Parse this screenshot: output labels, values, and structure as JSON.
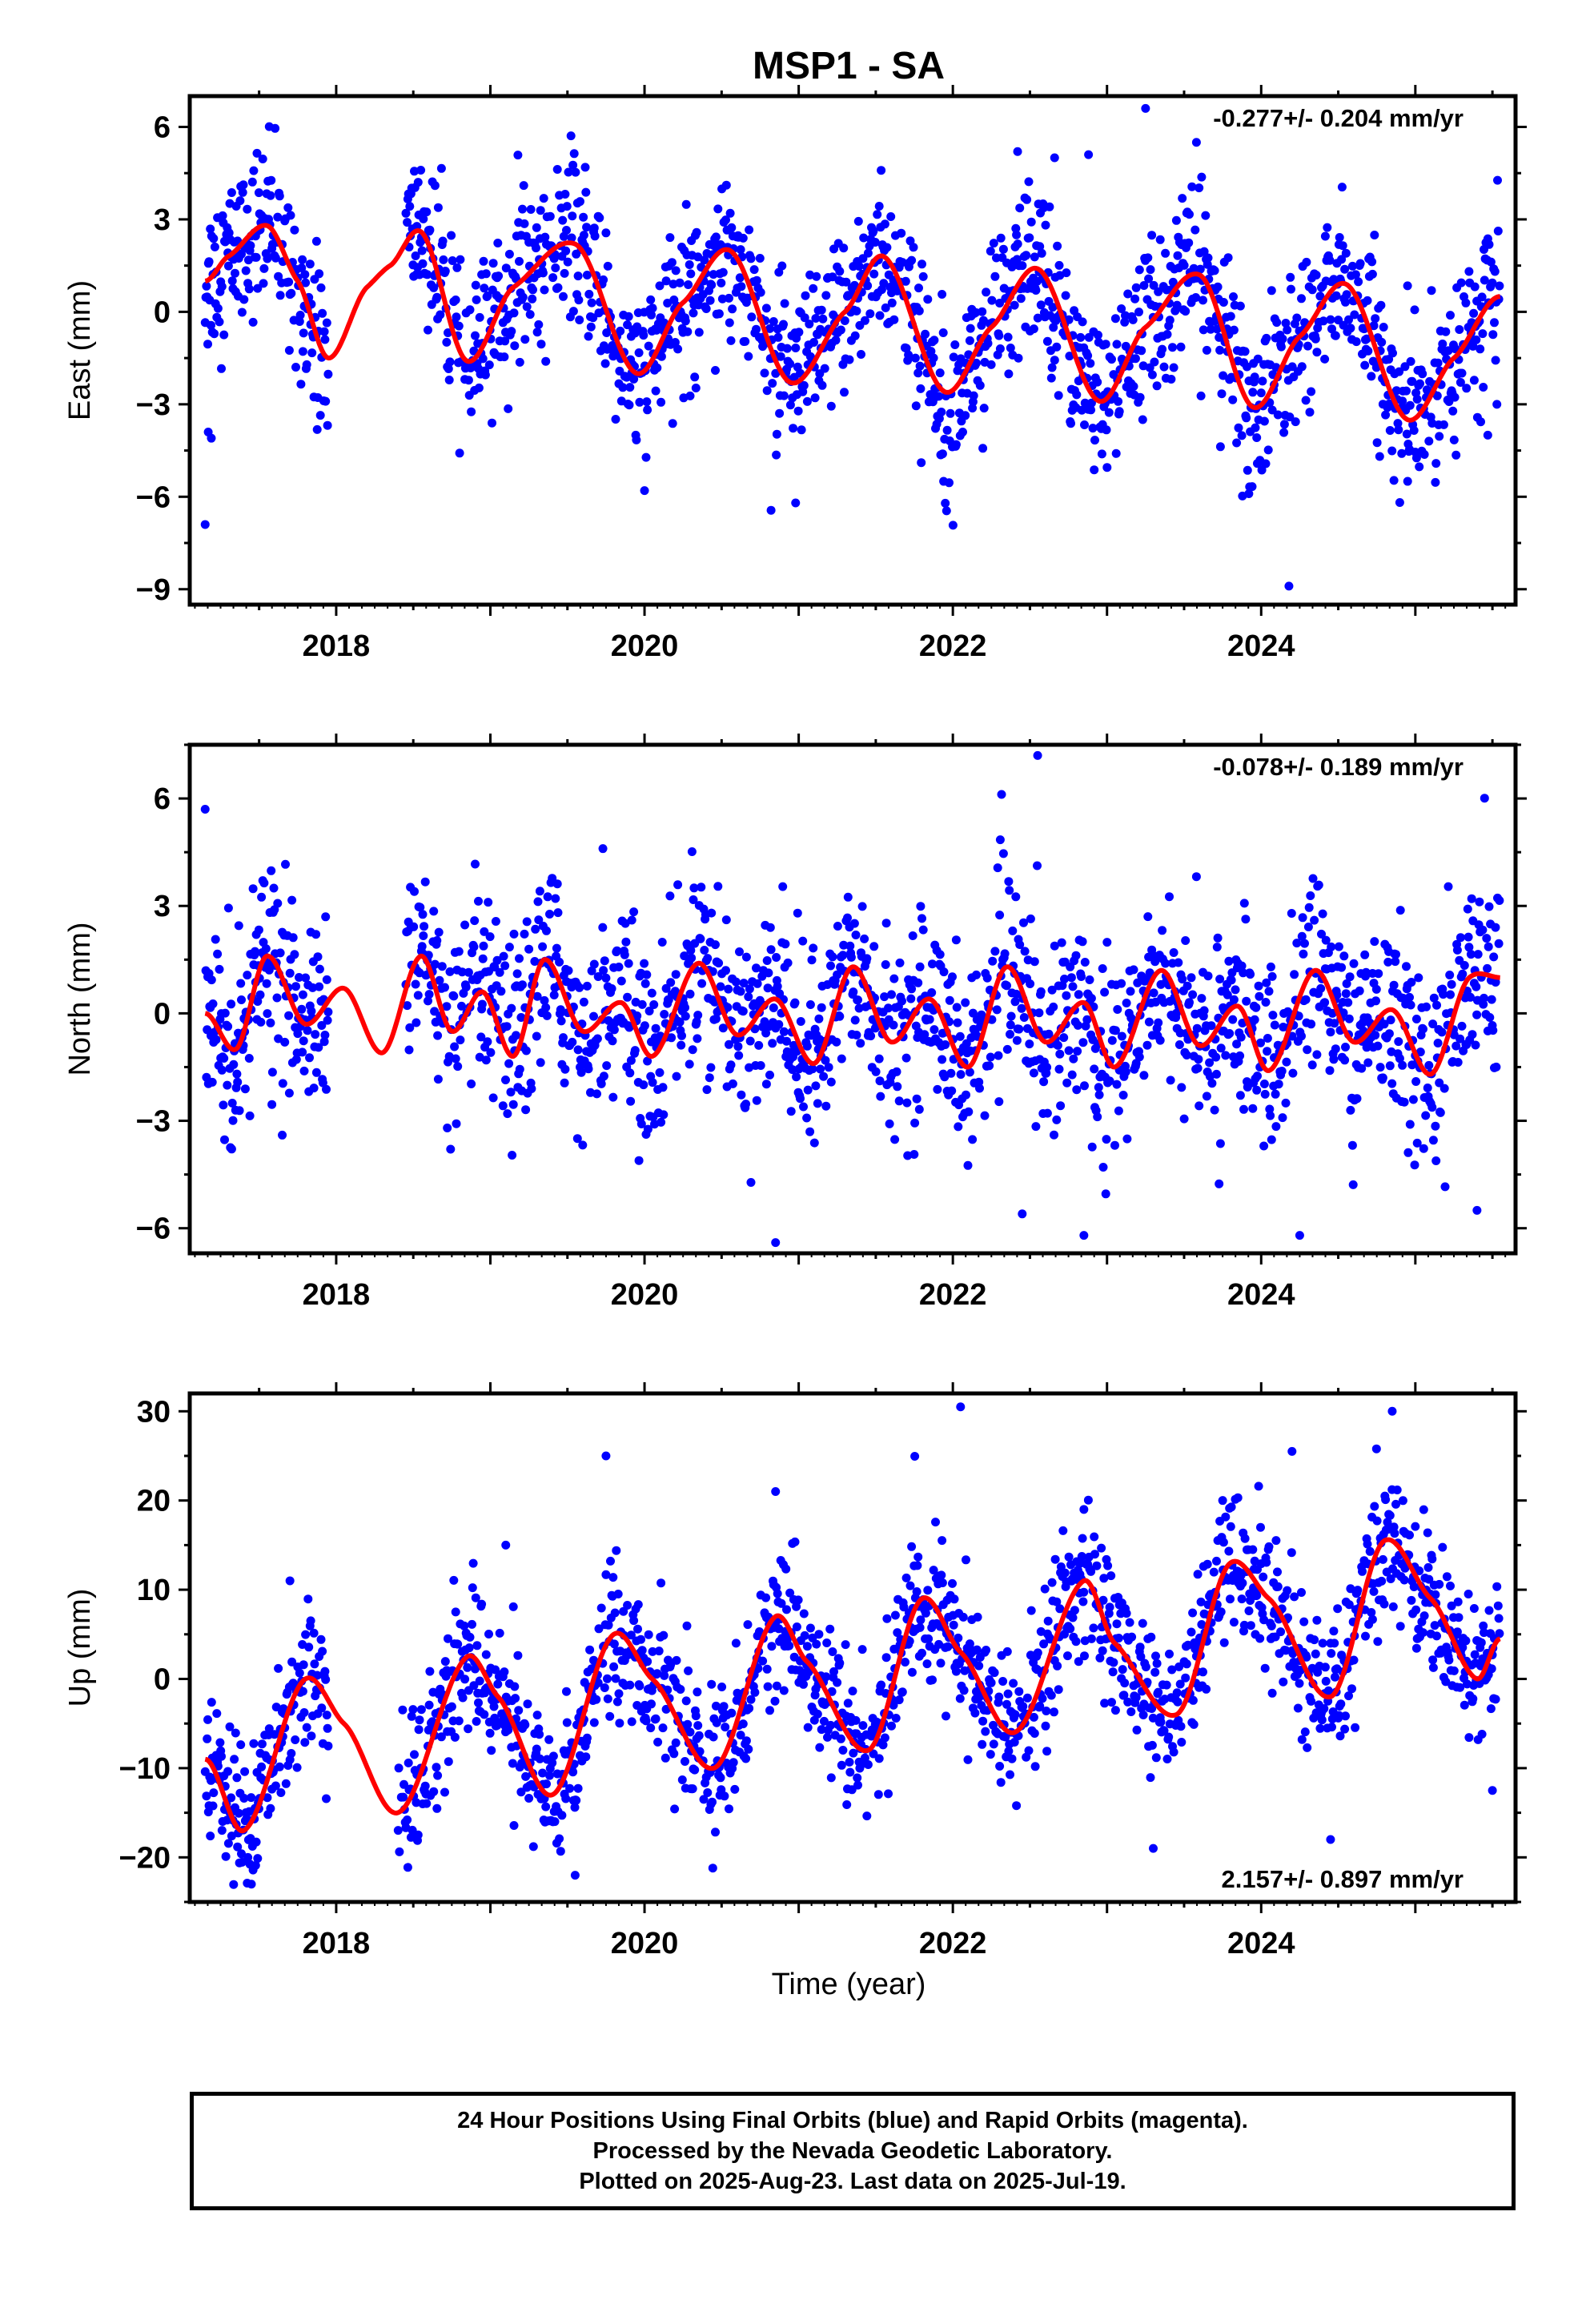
{
  "figure": {
    "title": "MSP1 - SA",
    "xlabel": "Time (year)",
    "colors": {
      "data": "#0000ff",
      "fit": "#ff0000",
      "frame": "#000000"
    }
  },
  "caption": {
    "line1": "24 Hour Positions Using Final Orbits (blue) and Rapid Orbits (magenta).",
    "line2": "Processed by the Nevada Geodetic Laboratory.",
    "line3": "Plotted on 2025-Aug-23. Last data on 2025-Jul-19."
  },
  "chart_data": [
    {
      "type": "scatter",
      "panel": "east",
      "ylabel": "East (mm)",
      "rate_text": "-0.277+/- 0.204 mm/yr",
      "rate_position": "top-right",
      "xlim": [
        2017.05,
        2025.65
      ],
      "ylim": [
        -9.5,
        7.0
      ],
      "xticks": [
        2018,
        2020,
        2022,
        2024
      ],
      "xtick_labels": [
        "2018",
        "2020",
        "2022",
        "2024"
      ],
      "yticks": [
        -9,
        -6,
        -3,
        0,
        3,
        6
      ],
      "ytick_labels": [
        "−9",
        "−6",
        "−3",
        "0",
        "3",
        "6"
      ],
      "grid": false,
      "data_start": 2017.15,
      "data_end": 2025.55,
      "gaps": [
        [
          2017.95,
          2018.45
        ]
      ],
      "fit": {
        "x": [
          2017.15,
          2017.3,
          2017.55,
          2017.75,
          2017.95,
          2018.2,
          2018.35,
          2018.55,
          2018.85,
          2019.15,
          2019.55,
          2019.95,
          2020.25,
          2020.55,
          2020.95,
          2021.3,
          2021.55,
          2021.95,
          2022.25,
          2022.55,
          2022.95,
          2023.25,
          2023.6,
          2023.95,
          2024.25,
          2024.55,
          2024.95,
          2025.25,
          2025.55
        ],
        "y": [
          1.0,
          1.8,
          2.8,
          1.0,
          -1.5,
          0.8,
          1.5,
          2.6,
          -1.6,
          0.8,
          2.2,
          -2.0,
          0.3,
          2.0,
          -2.3,
          0.0,
          1.8,
          -2.6,
          -0.5,
          1.4,
          -2.9,
          -0.5,
          1.2,
          -3.1,
          -0.8,
          0.9,
          -3.5,
          -1.5,
          0.5
        ]
      },
      "scatter_spread": 1.3,
      "outliers": [
        {
          "x": 2017.15,
          "y": -6.9
        },
        {
          "x": 2017.17,
          "y": -3.9
        },
        {
          "x": 2017.19,
          "y": -4.1
        },
        {
          "x": 2020.0,
          "y": -5.8
        },
        {
          "x": 2020.98,
          "y": -6.2
        },
        {
          "x": 2021.94,
          "y": -5.5
        },
        {
          "x": 2022.42,
          "y": 5.2
        },
        {
          "x": 2022.66,
          "y": 5.0
        },
        {
          "x": 2022.88,
          "y": 5.1
        },
        {
          "x": 2023.25,
          "y": 6.6
        },
        {
          "x": 2023.58,
          "y": 5.5
        },
        {
          "x": 2023.92,
          "y": -5.9
        },
        {
          "x": 2024.18,
          "y": -8.9
        },
        {
          "x": 2024.95,
          "y": -5.5
        },
        {
          "x": 2025.47,
          "y": -4.0
        }
      ]
    },
    {
      "type": "scatter",
      "panel": "north",
      "ylabel": "North (mm)",
      "rate_text": "-0.078+/- 0.189 mm/yr",
      "rate_position": "top-right",
      "xlim": [
        2017.05,
        2025.65
      ],
      "ylim": [
        -6.7,
        7.5
      ],
      "xticks": [
        2018,
        2020,
        2022,
        2024
      ],
      "xtick_labels": [
        "2018",
        "2020",
        "2022",
        "2024"
      ],
      "yticks": [
        -6,
        -3,
        0,
        3,
        6
      ],
      "ytick_labels": [
        "−6",
        "−3",
        "0",
        "3",
        "6"
      ],
      "grid": false,
      "data_start": 2017.15,
      "data_end": 2025.55,
      "gaps": [
        [
          2017.95,
          2018.45
        ]
      ],
      "fit": {
        "x": [
          2017.15,
          2017.35,
          2017.55,
          2017.8,
          2018.05,
          2018.3,
          2018.55,
          2018.75,
          2018.95,
          2019.15,
          2019.35,
          2019.6,
          2019.85,
          2020.05,
          2020.35,
          2020.6,
          2020.85,
          2021.1,
          2021.35,
          2021.6,
          2021.85,
          2022.1,
          2022.35,
          2022.6,
          2022.85,
          2023.05,
          2023.35,
          2023.6,
          2023.85,
          2024.05,
          2024.35,
          2024.6,
          2024.85,
          2025.1,
          2025.35,
          2025.55
        ],
        "y": [
          0.0,
          -1.0,
          1.6,
          -0.3,
          0.7,
          -1.1,
          1.6,
          -0.5,
          0.6,
          -1.2,
          1.5,
          -0.5,
          0.3,
          -1.2,
          1.4,
          -0.6,
          0.4,
          -1.4,
          1.3,
          -0.8,
          0.4,
          -1.5,
          1.3,
          -0.8,
          0.3,
          -1.5,
          1.2,
          -0.9,
          0.2,
          -1.6,
          1.2,
          -0.8,
          0.1,
          -1.7,
          1.0,
          1.0
        ]
      },
      "scatter_spread": 1.3,
      "outliers": [
        {
          "x": 2017.15,
          "y": 5.7
        },
        {
          "x": 2017.65,
          "y": -3.4
        },
        {
          "x": 2019.73,
          "y": 4.6
        },
        {
          "x": 2020.85,
          "y": -6.4
        },
        {
          "x": 2022.45,
          "y": -5.6
        },
        {
          "x": 2022.55,
          "y": 7.2
        },
        {
          "x": 2022.85,
          "y": -6.2
        },
        {
          "x": 2024.25,
          "y": -6.2
        },
        {
          "x": 2025.4,
          "y": -5.5
        },
        {
          "x": 2025.52,
          "y": 2.4
        }
      ]
    },
    {
      "type": "scatter",
      "panel": "up",
      "ylabel": "Up (mm)",
      "rate_text": "2.157+/- 0.897 mm/yr",
      "rate_position": "bottom-right",
      "xlim": [
        2017.05,
        2025.65
      ],
      "ylim": [
        -25,
        32
      ],
      "xticks": [
        2018,
        2020,
        2022,
        2024
      ],
      "xtick_labels": [
        "2018",
        "2020",
        "2022",
        "2024"
      ],
      "yticks": [
        -20,
        -10,
        0,
        10,
        20,
        30
      ],
      "ytick_labels": [
        "−20",
        "−10",
        "0",
        "10",
        "20",
        "30"
      ],
      "grid": false,
      "data_start": 2017.15,
      "data_end": 2025.55,
      "gaps": [
        [
          2017.95,
          2018.4
        ]
      ],
      "fit": {
        "x": [
          2017.15,
          2017.4,
          2017.8,
          2018.05,
          2018.4,
          2018.85,
          2019.05,
          2019.4,
          2019.8,
          2020.05,
          2020.45,
          2020.85,
          2021.05,
          2021.45,
          2021.8,
          2022.05,
          2022.4,
          2022.85,
          2023.05,
          2023.45,
          2023.8,
          2024.05,
          2024.45,
          2024.8,
          2025.1,
          2025.4,
          2025.55
        ],
        "y": [
          -9,
          -17,
          0,
          -5,
          -15,
          2.5,
          -2,
          -13,
          5,
          0,
          -10,
          7,
          2,
          -8,
          9,
          3,
          -6,
          11,
          4,
          -4,
          13,
          9,
          -2,
          15.5,
          9,
          0,
          4.5
        ]
      },
      "scatter_spread": 4.0,
      "outliers": [
        {
          "x": 2017.45,
          "y": -23
        },
        {
          "x": 2017.7,
          "y": 11
        },
        {
          "x": 2019.1,
          "y": 15
        },
        {
          "x": 2019.55,
          "y": -22
        },
        {
          "x": 2019.75,
          "y": 25
        },
        {
          "x": 2020.85,
          "y": 21
        },
        {
          "x": 2022.05,
          "y": 30.5
        },
        {
          "x": 2022.85,
          "y": 19
        },
        {
          "x": 2023.3,
          "y": -19
        },
        {
          "x": 2023.75,
          "y": 20
        },
        {
          "x": 2024.2,
          "y": 25.5
        },
        {
          "x": 2024.45,
          "y": -18
        },
        {
          "x": 2024.85,
          "y": 30
        },
        {
          "x": 2025.5,
          "y": -12.5
        }
      ]
    }
  ]
}
